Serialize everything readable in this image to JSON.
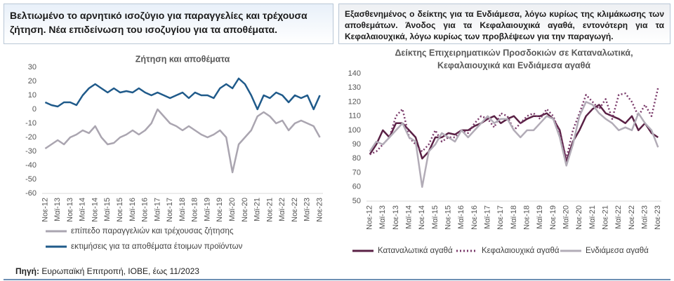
{
  "header_left": "Βελτιωμένο το αρνητικό ισοζύγιο για παραγγελίες και τρέχουσα ζήτηση. Νέα επιδείνωση του ισοζυγίου για τα αποθέματα.",
  "header_right": "Εξασθενημένος ο δείκτης για τα Ενδιάμεσα, λόγω κυρίως της κλιμάκωσης των αποθεμάτων. Άνοδος για τα Κεφαλαιουχικά αγαθά, εντονότερη για τα Κεφαλαιουχικά, λόγω κυρίως των προβλέψεων για την παραγωγή.",
  "chart_data": [
    {
      "type": "line",
      "title": [
        "Ζήτηση και αποθέματα"
      ],
      "categories": [
        "Νοε-12",
        null,
        "Μαϊ-13",
        null,
        "Νοε-13",
        null,
        "Μαϊ-14",
        null,
        "Νοε-14",
        null,
        "Μαϊ-15",
        null,
        "Νοε-15",
        null,
        "Μαϊ-16",
        null,
        "Νοε-16",
        null,
        "Μαϊ-17",
        null,
        "Νοε-17",
        null,
        "Μαϊ-18",
        null,
        "Νοε-18",
        null,
        "Μαϊ-19",
        null,
        "Νοε-19",
        null,
        "Μαϊ-20",
        null,
        "Νοε-20",
        null,
        "Μαϊ-21",
        null,
        "Νοε-21",
        null,
        "Μαϊ-22",
        null,
        "Νοε-22",
        null,
        "Μαϊ-23",
        null,
        "Νοε-23"
      ],
      "series": [
        {
          "name": "επίπεδο παραγγελιών και τρέχουσας ζήτησης",
          "color": "#aaa5b0",
          "values": [
            -28,
            -25,
            -22,
            -25,
            -20,
            -18,
            -15,
            -17,
            -12,
            -20,
            -25,
            -24,
            -20,
            -18,
            -15,
            -18,
            -15,
            -10,
            0,
            -5,
            -10,
            -12,
            -15,
            -12,
            -15,
            -18,
            -20,
            -18,
            -15,
            -20,
            -45,
            -25,
            -20,
            -15,
            -5,
            -2,
            -5,
            -10,
            -8,
            -15,
            -10,
            -8,
            -10,
            -12,
            -20
          ]
        },
        {
          "name": "εκτιμήσεις για τα αποθέματα έτοιμων προϊόντων",
          "color": "#1f5a8a",
          "values": [
            5,
            3,
            2,
            5,
            5,
            3,
            10,
            15,
            18,
            15,
            12,
            15,
            12,
            13,
            12,
            15,
            12,
            10,
            12,
            10,
            8,
            10,
            12,
            8,
            12,
            10,
            10,
            8,
            15,
            18,
            15,
            22,
            18,
            10,
            0,
            10,
            8,
            12,
            10,
            5,
            10,
            8,
            10,
            0,
            10
          ]
        }
      ],
      "ylim": [
        -60,
        30
      ],
      "yticks": [
        -60,
        -50,
        -40,
        -30,
        -20,
        -10,
        0,
        10,
        20,
        30
      ],
      "grid": false,
      "legend": "bottom"
    },
    {
      "type": "line",
      "title": [
        "Δείκτης Επιχειρηματικών Προσδοκιών σε Καταναλωτικά,",
        "Κεφαλαιουχικά και Ενδιάμεσα αγαθά"
      ],
      "categories": [
        "Νοε-12",
        null,
        "Μαϊ-13",
        null,
        "Νοε-13",
        null,
        "Μαϊ-14",
        null,
        "Νοε-14",
        null,
        "Μαϊ-15",
        null,
        "Νοε-15",
        null,
        "Μαϊ-16",
        null,
        "Νοε-16",
        null,
        "Μαϊ-17",
        null,
        "Νοε-17",
        null,
        "Μαϊ-18",
        null,
        "Νοε-18",
        null,
        "Μαϊ-19",
        null,
        "Νοε-19",
        null,
        "Μαϊ-20",
        null,
        "Νοε-20",
        null,
        "Μαϊ-21",
        null,
        "Νοε-21",
        null,
        "Μαϊ-22",
        null,
        "Νοε-22",
        null,
        "Μαϊ-23",
        null,
        "Νοε-23"
      ],
      "series": [
        {
          "name": "Καταναλωτικά αγαθά",
          "color": "#5a2145",
          "dash": "solid",
          "values": [
            83,
            90,
            100,
            95,
            105,
            105,
            100,
            95,
            80,
            85,
            95,
            95,
            98,
            97,
            100,
            100,
            103,
            105,
            108,
            110,
            105,
            108,
            110,
            105,
            108,
            110,
            110,
            112,
            108,
            100,
            78,
            92,
            100,
            110,
            115,
            118,
            112,
            110,
            108,
            105,
            110,
            100,
            105,
            98,
            95
          ]
        },
        {
          "name": "Κεφαλαιουχικά αγαθά",
          "color": "#7a3a6a",
          "dash": "dotted",
          "values": [
            83,
            85,
            90,
            95,
            110,
            115,
            95,
            90,
            85,
            90,
            100,
            92,
            95,
            95,
            100,
            98,
            105,
            110,
            108,
            102,
            112,
            110,
            100,
            105,
            110,
            112,
            108,
            115,
            110,
            98,
            80,
            100,
            112,
            125,
            120,
            115,
            122,
            108,
            125,
            126,
            120,
            110,
            118,
            110,
            130
          ]
        },
        {
          "name": "Ενδιάμεσα αγαθά",
          "color": "#b2acb7",
          "dash": "solid",
          "values": [
            85,
            92,
            90,
            95,
            100,
            105,
            95,
            92,
            60,
            85,
            90,
            98,
            95,
            92,
            100,
            95,
            100,
            105,
            110,
            105,
            108,
            108,
            100,
            95,
            100,
            100,
            105,
            110,
            108,
            95,
            75,
            90,
            110,
            120,
            118,
            112,
            108,
            105,
            100,
            102,
            100,
            112,
            105,
            100,
            88
          ]
        }
      ],
      "ylim": [
        50,
        140
      ],
      "yticks": [
        50,
        60,
        70,
        80,
        90,
        100,
        110,
        120,
        130,
        140
      ],
      "grid": false,
      "legend": "bottom"
    }
  ],
  "source": {
    "label": "Πηγή:",
    "text": "Ευρωπαϊκή Επιτροπή, ΙΟΒΕ, έως 11/2023"
  }
}
